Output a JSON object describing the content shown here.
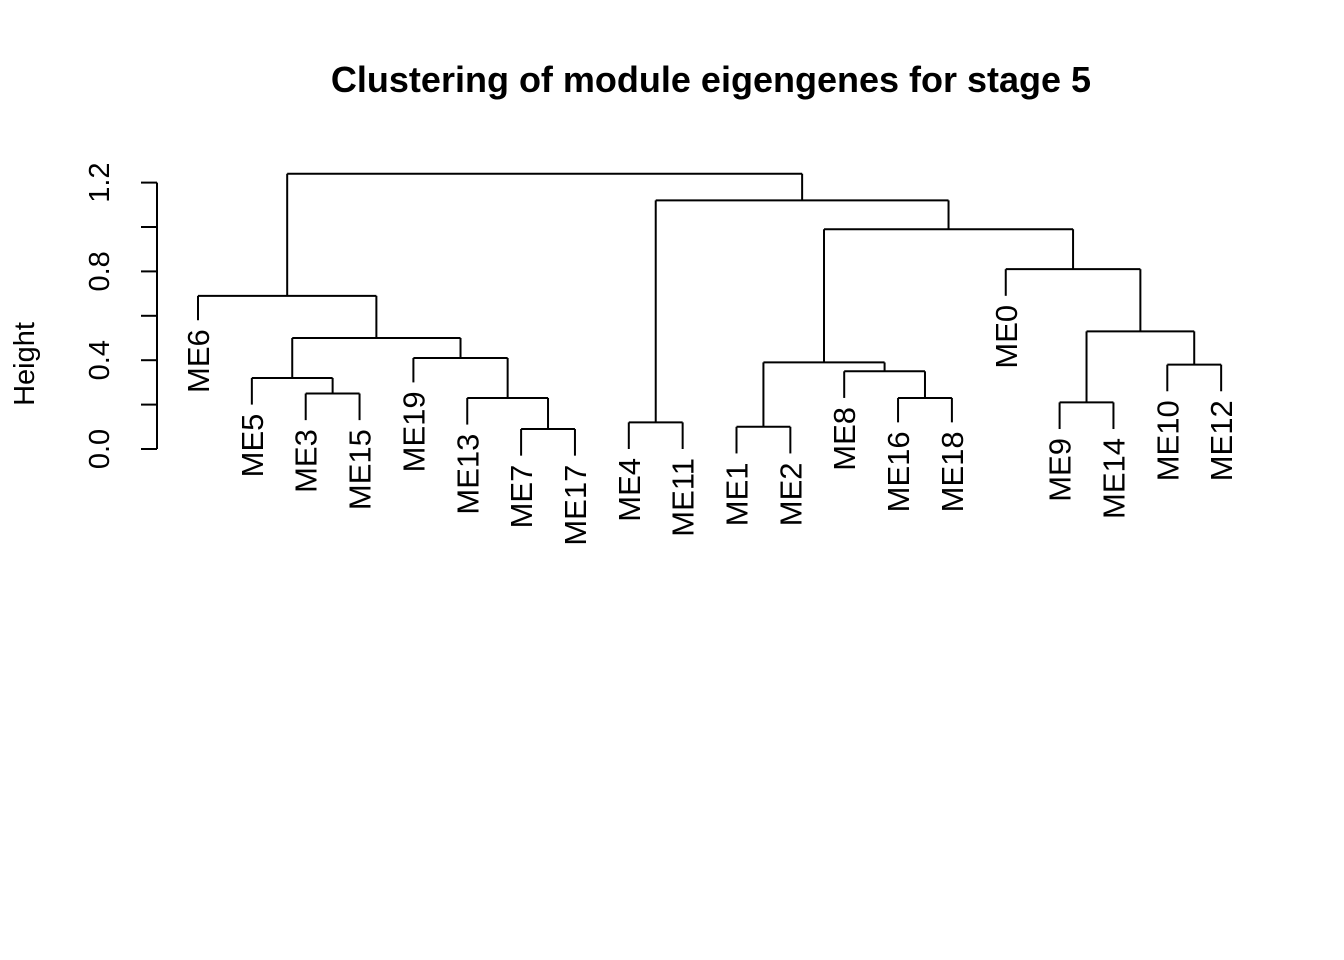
{
  "chart_data": {
    "type": "dendrogram",
    "title": "Clustering of module eigengenes for stage  5",
    "xlabel": "",
    "ylabel": "Height",
    "ylim": [
      0,
      1.3
    ],
    "y_ticks": [
      "0.0",
      "0.4",
      "0.8",
      "1.2"
    ],
    "y_tick_values": [
      0.0,
      0.2,
      0.4,
      0.6,
      0.8,
      1.0,
      1.2
    ],
    "grid": false,
    "leaves": [
      {
        "label": "ME6",
        "height": 0.58
      },
      {
        "label": "ME5",
        "height": 0.2
      },
      {
        "label": "ME3",
        "height": 0.13
      },
      {
        "label": "ME15",
        "height": 0.13
      },
      {
        "label": "ME19",
        "height": 0.3
      },
      {
        "label": "ME13",
        "height": 0.11
      },
      {
        "label": "ME7",
        "height": -0.03
      },
      {
        "label": "ME17",
        "height": -0.03
      },
      {
        "label": "ME4",
        "height": 0.0
      },
      {
        "label": "ME11",
        "height": 0.0
      },
      {
        "label": "ME1",
        "height": -0.02
      },
      {
        "label": "ME2",
        "height": -0.02
      },
      {
        "label": "ME8",
        "height": 0.23
      },
      {
        "label": "ME16",
        "height": 0.12
      },
      {
        "label": "ME18",
        "height": 0.12
      },
      {
        "label": "ME0",
        "height": 0.69
      },
      {
        "label": "ME9",
        "height": 0.09
      },
      {
        "label": "ME14",
        "height": 0.09
      },
      {
        "label": "ME10",
        "height": 0.26
      },
      {
        "label": "ME12",
        "height": 0.26
      }
    ],
    "merges": [
      {
        "left": "ME7",
        "right": "ME17",
        "height": 0.09
      },
      {
        "left": "ME1",
        "right": "ME2",
        "height": 0.1
      },
      {
        "left": "ME4",
        "right": "ME11",
        "height": 0.12
      },
      {
        "left": "ME9",
        "right": "ME14",
        "height": 0.21
      },
      {
        "left": "ME13",
        "right": "ME7+ME17",
        "height": 0.23
      },
      {
        "left": "ME16",
        "right": "ME18",
        "height": 0.23
      },
      {
        "left": "ME3",
        "right": "ME15",
        "height": 0.25
      },
      {
        "left": "ME5",
        "right": "ME3+ME15",
        "height": 0.32
      },
      {
        "left": "ME8",
        "right": "ME16+ME18",
        "height": 0.35
      },
      {
        "left": "ME10",
        "right": "ME12",
        "height": 0.38
      },
      {
        "left": "ME1+ME2",
        "right": "ME8+ME16+ME18",
        "height": 0.39
      },
      {
        "left": "ME19",
        "right": "ME13+ME7+ME17",
        "height": 0.41
      },
      {
        "left": "ME5+ME3+ME15",
        "right": "ME19+ME13+ME7+ME17",
        "height": 0.5
      },
      {
        "left": "ME9+ME14",
        "right": "ME10+ME12",
        "height": 0.53
      },
      {
        "left": "ME6",
        "right": "ME5 … ME17",
        "height": 0.69
      },
      {
        "left": "ME0",
        "right": "ME9+ME14+ME10+ME12",
        "height": 0.81
      },
      {
        "left": "ME1 … ME18",
        "right": "ME0 … ME12",
        "height": 0.99
      },
      {
        "left": "ME4+ME11",
        "right": "ME1 … ME12",
        "height": 1.12
      },
      {
        "left": "ME6 … ME17",
        "right": "ME4 … ME12",
        "height": 1.24
      }
    ]
  }
}
